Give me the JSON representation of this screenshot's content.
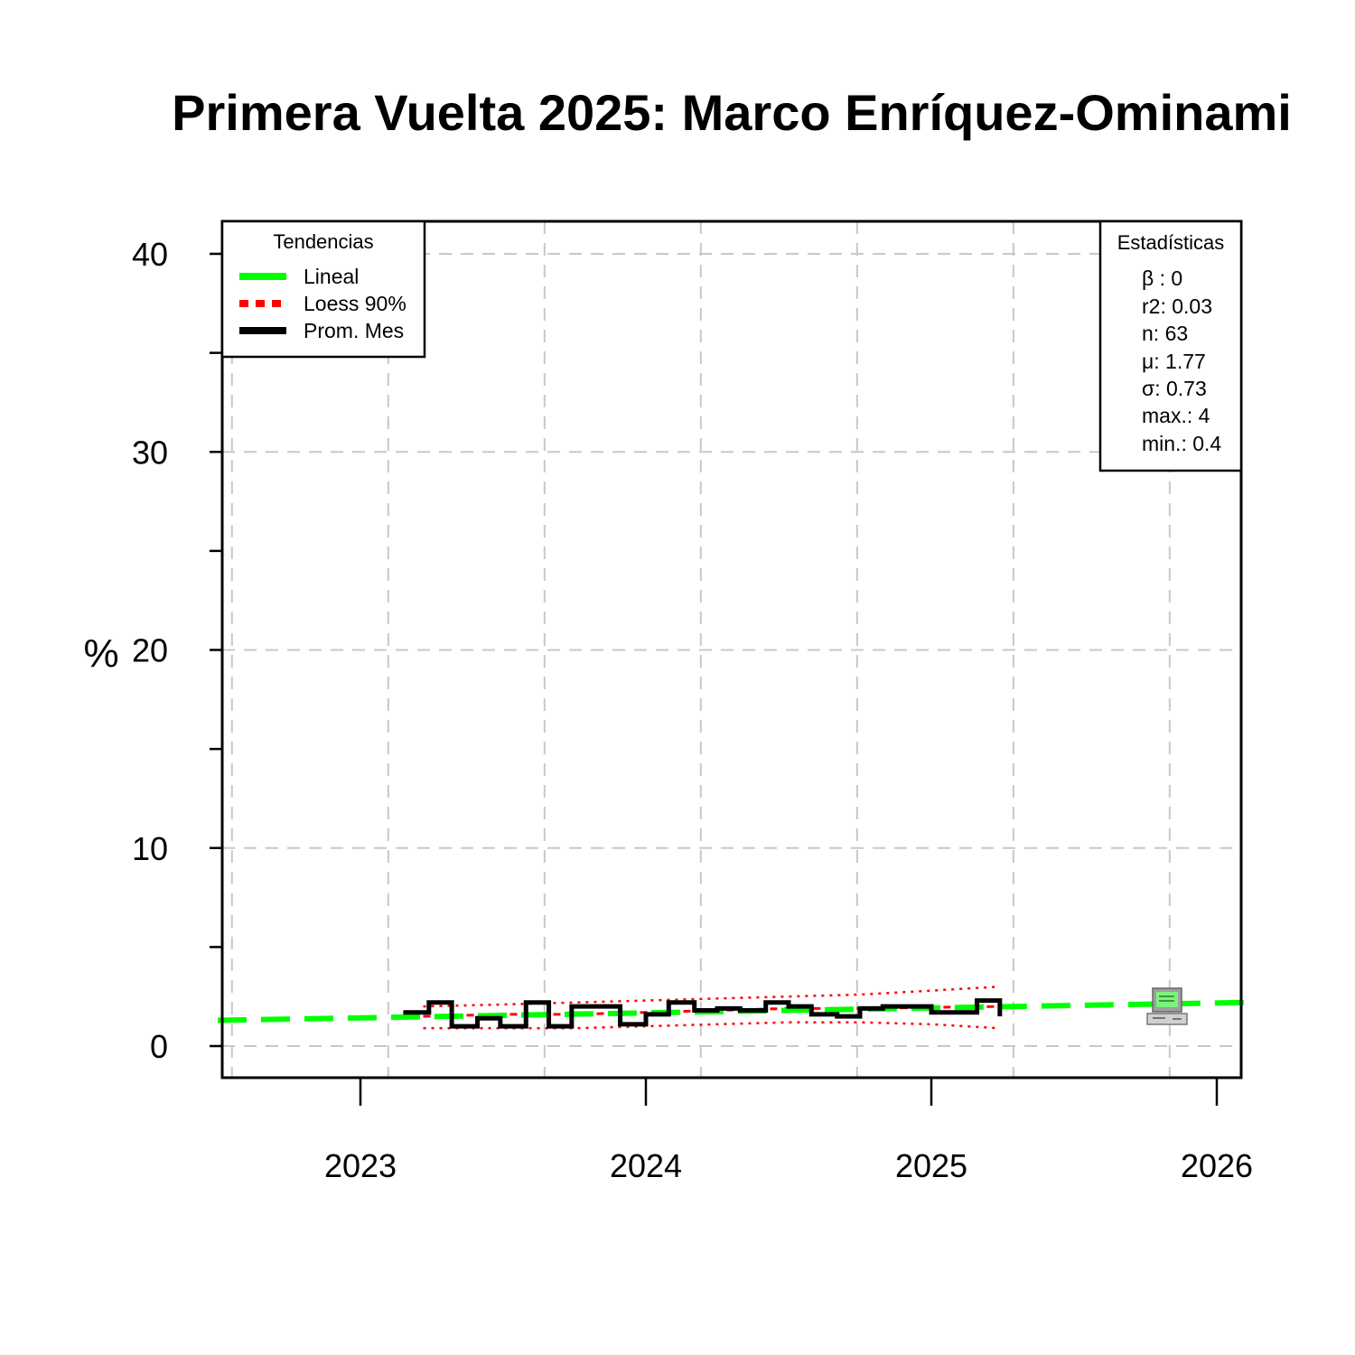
{
  "chart_data": {
    "type": "line",
    "title": "Primera Vuelta 2025: Marco Enríquez-Ominami",
    "xlabel": "",
    "ylabel": "%",
    "ylim": [
      0,
      40
    ],
    "yticks": [
      0,
      10,
      20,
      30,
      40
    ],
    "xticks": [
      2023,
      2024,
      2025,
      2026
    ],
    "xlim": [
      2022.5,
      2026.1
    ],
    "grid": true,
    "legend": {
      "title": "Tendencias",
      "placement": "top-left",
      "entries": [
        {
          "label": "Lineal",
          "color": "#00ff00",
          "style": "solid"
        },
        {
          "label": "Loess 90%",
          "color": "#ff0000",
          "style": "dotted"
        },
        {
          "label": "Prom. Mes",
          "color": "#000000",
          "style": "solid"
        }
      ]
    },
    "stats": {
      "title": "Estadísticas",
      "placement": "top-right",
      "lines": [
        "β : 0",
        "r2: 0.03",
        "n: 63",
        "μ: 1.77",
        "σ: 0.73",
        "max.: 4",
        "min.: 0.4"
      ]
    },
    "series": [
      {
        "name": "Prom. Mes",
        "color": "#000000",
        "step": true,
        "x": [
          2023.15,
          2023.24,
          2023.32,
          2023.41,
          2023.49,
          2023.58,
          2023.66,
          2023.74,
          2023.83,
          2023.91,
          2024.0,
          2024.08,
          2024.17,
          2024.25,
          2024.33,
          2024.42,
          2024.5,
          2024.58,
          2024.67,
          2024.75,
          2024.83,
          2024.91,
          2025.0,
          2025.08,
          2025.16,
          2025.24
        ],
        "y": [
          1.7,
          2.2,
          1.0,
          1.4,
          1.0,
          2.2,
          1.0,
          2.0,
          2.0,
          1.1,
          1.6,
          2.2,
          1.8,
          1.9,
          1.8,
          2.2,
          2.0,
          1.6,
          1.5,
          1.9,
          2.0,
          2.0,
          1.7,
          1.7,
          2.3,
          1.5
        ]
      },
      {
        "name": "Lineal",
        "color": "#00ff00",
        "x": [
          2022.5,
          2026.1
        ],
        "y": [
          1.3,
          2.2
        ]
      },
      {
        "name": "Loess 90% (fit)",
        "color": "#ff0000",
        "x": [
          2023.22,
          2023.5,
          2023.75,
          2024.0,
          2024.25,
          2024.5,
          2024.75,
          2025.0,
          2025.24
        ],
        "y": [
          1.5,
          1.6,
          1.6,
          1.7,
          1.8,
          1.9,
          1.9,
          1.95,
          2.0
        ]
      },
      {
        "name": "Loess 90% (upper)",
        "color": "#ff0000",
        "x": [
          2023.22,
          2023.5,
          2023.75,
          2024.0,
          2024.25,
          2024.5,
          2024.75,
          2025.0,
          2025.24
        ],
        "y": [
          2.0,
          2.1,
          2.2,
          2.3,
          2.4,
          2.5,
          2.6,
          2.8,
          3.0
        ]
      },
      {
        "name": "Loess 90% (lower)",
        "color": "#ff0000",
        "x": [
          2023.22,
          2023.5,
          2023.75,
          2024.0,
          2024.25,
          2024.5,
          2024.75,
          2025.0,
          2025.24
        ],
        "y": [
          0.9,
          0.9,
          0.9,
          1.0,
          1.1,
          1.2,
          1.2,
          1.1,
          0.9
        ]
      }
    ]
  },
  "icons": {
    "computer": "computer-icon"
  }
}
